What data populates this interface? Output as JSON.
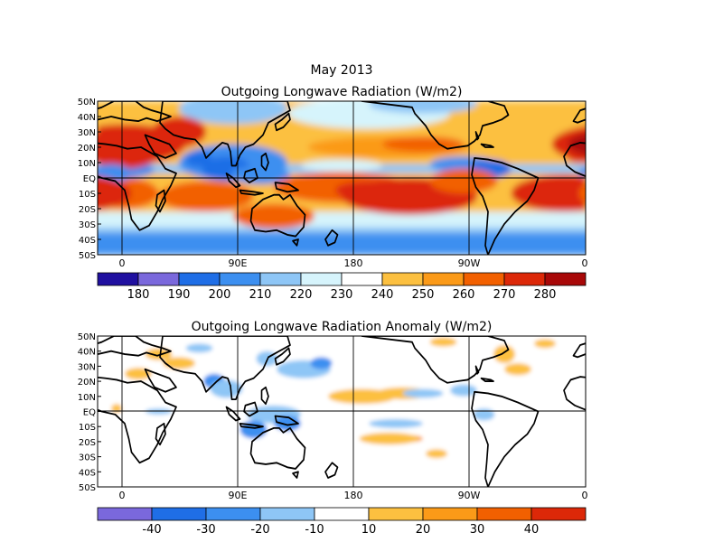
{
  "figure": {
    "title_line1": "May 2013",
    "colors": {
      "land_outline": "#000000",
      "frame": "#000000"
    }
  },
  "maps": [
    {
      "id": "olr-total",
      "title": "Outgoing Longwave Radiation (W/m2)",
      "lat_labels": [
        "50N",
        "40N",
        "30N",
        "20N",
        "10N",
        "EQ",
        "10S",
        "20S",
        "30S",
        "40S",
        "50S"
      ],
      "lon_labels": [
        "0",
        "90E",
        "180",
        "90W",
        "0"
      ],
      "colorbar": {
        "labels": [
          "180",
          "190",
          "200",
          "210",
          "220",
          "230",
          "240",
          "250",
          "260",
          "270",
          "280"
        ],
        "colors": [
          "#2010a0",
          "#7a68dc",
          "#1f6ee6",
          "#3c8ff0",
          "#8ec6f6",
          "#d6f4fc",
          "#ffffff",
          "#fcc040",
          "#fb9a18",
          "#f26000",
          "#dc2808",
          "#a80808"
        ]
      }
    },
    {
      "id": "olr-anomaly",
      "title": "Outgoing Longwave Radiation Anomaly (W/m2)",
      "lat_labels": [
        "50N",
        "40N",
        "30N",
        "20N",
        "10N",
        "EQ",
        "10S",
        "20S",
        "30S",
        "40S",
        "50S"
      ],
      "lon_labels": [
        "0",
        "90E",
        "180",
        "90W",
        "0"
      ],
      "colorbar": {
        "labels": [
          "-40",
          "-30",
          "-20",
          "-10",
          "10",
          "20",
          "30",
          "40"
        ],
        "colors": [
          "#7a68dc",
          "#1f6ee6",
          "#3c8ff0",
          "#8ec6f6",
          "#ffffff",
          "#fcc040",
          "#fb9a18",
          "#f26000",
          "#dc2808"
        ]
      }
    }
  ]
}
